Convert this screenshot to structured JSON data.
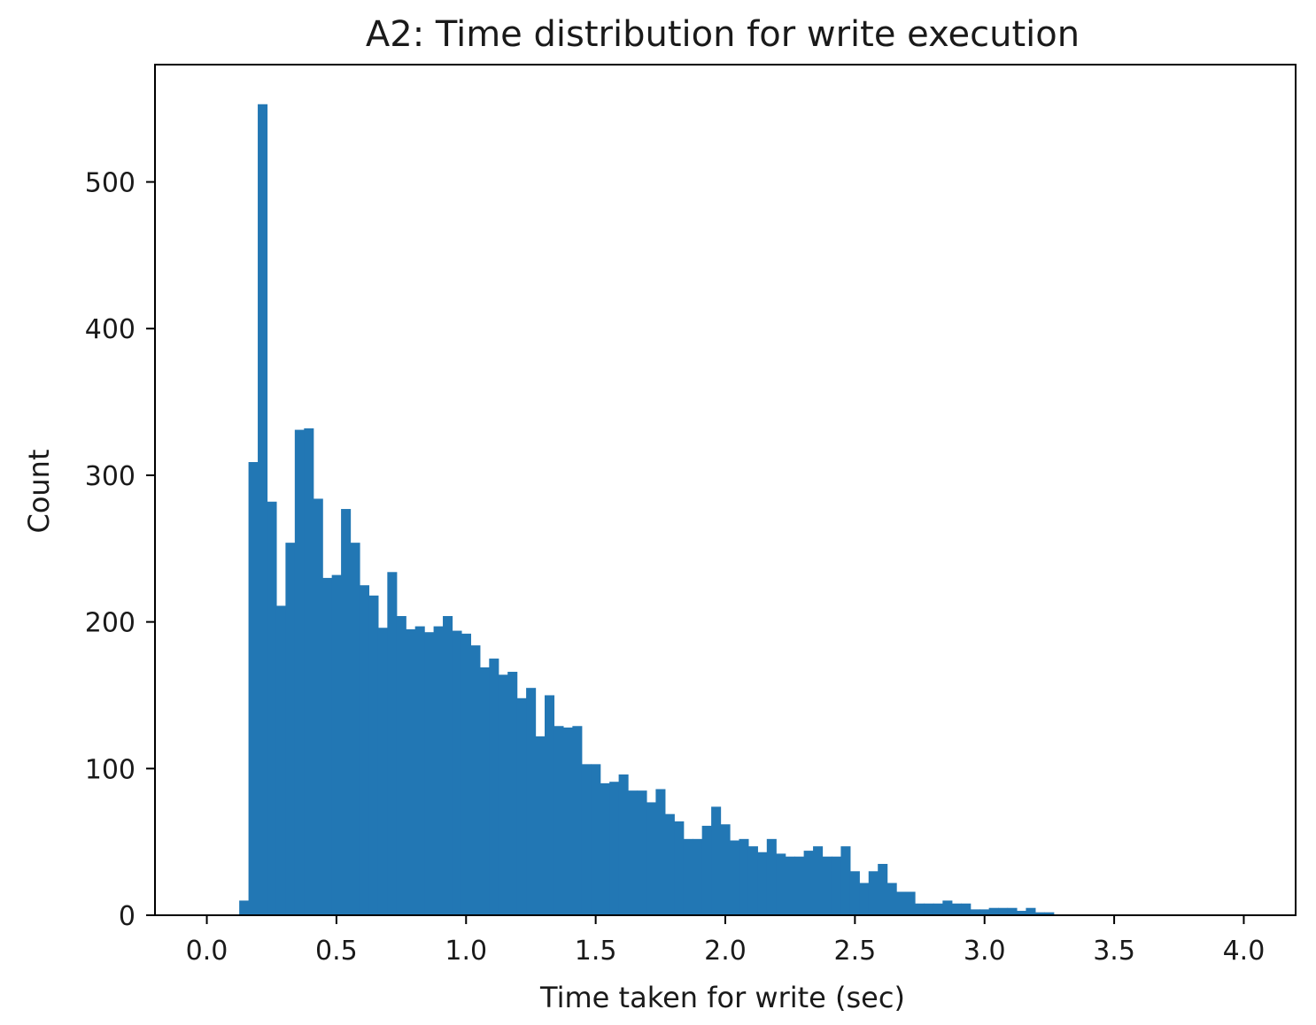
{
  "chart_data": {
    "type": "bar",
    "title": "A2: Time distribution for write execution",
    "xlabel": "Time taken for write (sec)",
    "ylabel": "Count",
    "xlim": [
      -0.2,
      4.2
    ],
    "ylim": [
      0,
      580
    ],
    "xticks": [
      0.0,
      0.5,
      1.0,
      1.5,
      2.0,
      2.5,
      3.0,
      3.5,
      4.0
    ],
    "xtick_labels": [
      "0.0",
      "0.5",
      "1.0",
      "1.5",
      "2.0",
      "2.5",
      "3.0",
      "3.5",
      "4.0"
    ],
    "yticks": [
      0,
      100,
      200,
      300,
      400,
      500
    ],
    "ytick_labels": [
      "0",
      "100",
      "200",
      "300",
      "400",
      "500"
    ],
    "grid": false,
    "bar_color": "#2277b4",
    "bin_width": 0.0357,
    "bin_edges_start": 0.125,
    "series": [
      {
        "values": [
          10,
          309,
          553,
          282,
          211,
          254,
          331,
          332,
          284,
          230,
          232,
          277,
          254,
          225,
          218,
          196,
          234,
          204,
          195,
          197,
          193,
          197,
          204,
          194,
          192,
          184,
          169,
          175,
          164,
          166,
          148,
          155,
          122,
          150,
          129,
          128,
          129,
          103,
          103,
          90,
          91,
          96,
          85,
          85,
          77,
          86,
          69,
          64,
          52,
          52,
          61,
          74,
          62,
          51,
          52,
          47,
          43,
          52,
          42,
          40,
          40,
          44,
          47,
          40,
          40,
          47,
          30,
          22,
          30,
          35,
          22,
          16,
          16,
          8,
          8,
          8,
          10,
          8,
          8,
          4,
          4,
          5,
          5,
          5,
          3,
          5,
          2,
          2
        ]
      }
    ]
  }
}
